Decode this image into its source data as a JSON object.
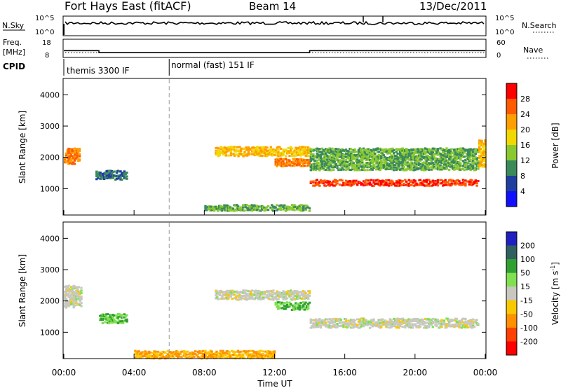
{
  "header": {
    "station": "Fort Hays East (fitACF)",
    "beam": "Beam 14",
    "date": "13/Dec/2011"
  },
  "strip": {
    "nsky_label": "N.Sky",
    "nsky_ticks": [
      "10^5",
      "10^0"
    ],
    "nsearch_label": "N.Search",
    "nsearch_ticks": [
      "10^5",
      "10^0"
    ],
    "freq_label": "Freq.",
    "freq_unit": "[MHz]",
    "freq_ticks": [
      "18",
      "8"
    ],
    "nave_label": "Nave",
    "nave_ticks": [
      "60",
      "0"
    ],
    "cpid_label": "CPID",
    "cpid_segments": [
      {
        "name": "themis 3300 IF",
        "start": 0,
        "end": 6
      },
      {
        "name": "normal (fast) 151 IF",
        "start": 6,
        "end": 24
      }
    ],
    "freq_steps": [
      {
        "start": 0,
        "end": 2,
        "mhz": 11.5
      },
      {
        "start": 2,
        "end": 14,
        "mhz": 10.2
      },
      {
        "start": 14,
        "end": 24,
        "mhz": 11.5
      }
    ],
    "nave_level": 13
  },
  "panels": [
    {
      "id": "power",
      "ylabel": "Slant Range [km]",
      "yticks": [
        "4000",
        "3000",
        "2000",
        "1000"
      ]
    },
    {
      "id": "velocity",
      "ylabel": "Slant Range [km]",
      "yticks": [
        "4000",
        "3000",
        "2000",
        "1000"
      ]
    }
  ],
  "xaxis": {
    "label": "Time UT",
    "ticks": [
      "00:00",
      "04:00",
      "08:00",
      "12:00",
      "16:00",
      "20:00",
      "00:00"
    ]
  },
  "power_scale": {
    "label": "Power [dB]",
    "ticks": [
      "28",
      "24",
      "20",
      "16",
      "12",
      "8",
      "4"
    ],
    "colors": [
      "#ff0000",
      "#ff5a00",
      "#ff9e00",
      "#f0d800",
      "#8ac830",
      "#3a8a5a",
      "#1f3ea0",
      "#1010ff"
    ]
  },
  "velocity_scale": {
    "label": "Velocity [m s",
    "label_sup": "-1",
    "label_end": "]",
    "ticks": [
      "200",
      "100",
      "50",
      "15",
      "-15",
      "-50",
      "-100",
      "-200"
    ],
    "colors": [
      "#2020c0",
      "#306060",
      "#30a030",
      "#80e050",
      "#c8c8c0",
      "#f8c800",
      "#ff9000",
      "#ff4000",
      "#ff0000"
    ]
  },
  "chart_data": {
    "type": "heatmap",
    "title": "Fort Hays East (fitACF)",
    "xlabel": "Time UT",
    "ylabel": "Slant Range [km]",
    "xlim": [
      0,
      24
    ],
    "ylim": [
      180,
      4500
    ],
    "series": [
      {
        "name": "Power",
        "bands": [
          {
            "t0": 0.0,
            "t1": 0.9,
            "r_center": 2100,
            "r_width": 500,
            "value": 24
          },
          {
            "t0": 1.8,
            "t1": 3.6,
            "r_center": 1500,
            "r_width": 300,
            "value": 8
          },
          {
            "t0": 8.6,
            "t1": 14.0,
            "r_center": 2250,
            "r_width": 300,
            "value": 20
          },
          {
            "t0": 12.0,
            "t1": 14.0,
            "r_center": 1900,
            "r_width": 250,
            "value": 24
          },
          {
            "t0": 14.0,
            "t1": 23.6,
            "r_center": 1250,
            "r_width": 200,
            "value": 28
          },
          {
            "t0": 14.0,
            "t1": 23.6,
            "r_center": 2000,
            "r_width": 700,
            "value": 12
          },
          {
            "t0": 8.0,
            "t1": 14.0,
            "r_center": 450,
            "r_width": 200,
            "value": 12
          },
          {
            "t0": 23.6,
            "t1": 24.0,
            "r_center": 2200,
            "r_width": 900,
            "value": 20
          }
        ]
      },
      {
        "name": "Velocity",
        "bands": [
          {
            "t0": 2.0,
            "t1": 3.6,
            "r_center": 1500,
            "r_width": 300,
            "value": 50
          },
          {
            "t0": 8.6,
            "t1": 14.0,
            "r_center": 2250,
            "r_width": 300,
            "value": 0
          },
          {
            "t0": 12.0,
            "t1": 14.0,
            "r_center": 1900,
            "r_width": 250,
            "value": 50
          },
          {
            "t0": 14.0,
            "t1": 23.6,
            "r_center": 1350,
            "r_width": 300,
            "value": 0
          },
          {
            "t0": 4.0,
            "t1": 12.0,
            "r_center": 350,
            "r_width": 250,
            "value": -50
          },
          {
            "t0": 0.0,
            "t1": 1.0,
            "r_center": 2200,
            "r_width": 700,
            "value": 0
          }
        ]
      }
    ]
  }
}
